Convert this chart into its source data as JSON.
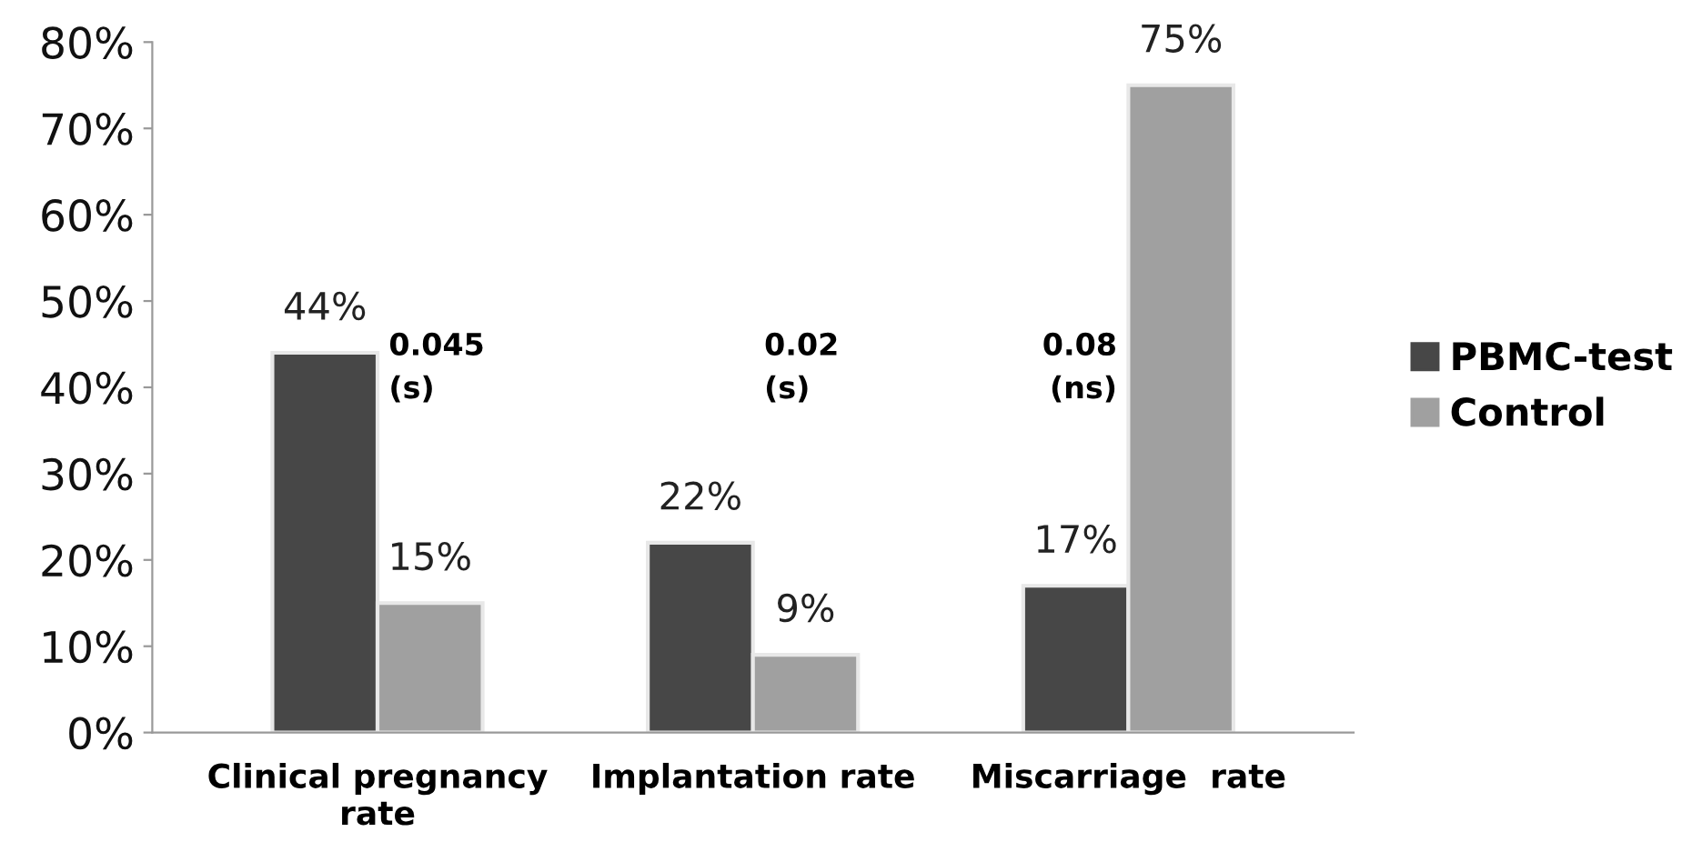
{
  "chart_data": {
    "type": "bar",
    "categories": [
      "Clinical pregnancy\nrate",
      "Implantation rate",
      "Miscarriage  rate"
    ],
    "series": [
      {
        "name": "PBMC-test",
        "color": "#474747",
        "values": [
          44,
          22,
          17
        ],
        "value_labels": [
          "44%",
          "22%",
          "17%"
        ]
      },
      {
        "name": "Control",
        "color": "#a0a0a0",
        "values": [
          15,
          9,
          75
        ],
        "value_labels": [
          "15%",
          "9%",
          "75%"
        ]
      }
    ],
    "ylim": [
      0,
      80
    ],
    "yticks": [
      {
        "value": 0,
        "label": "0%"
      },
      {
        "value": 10,
        "label": "10%"
      },
      {
        "value": 20,
        "label": "20%"
      },
      {
        "value": 30,
        "label": "30%"
      },
      {
        "value": 40,
        "label": "40%"
      },
      {
        "value": 50,
        "label": "50%"
      },
      {
        "value": 60,
        "label": "60%"
      },
      {
        "value": 70,
        "label": "70%"
      },
      {
        "value": 80,
        "label": "80%"
      }
    ],
    "annotations": [
      "0.045\n(s)",
      "0.02\n(s)",
      "0.08\n(ns)"
    ],
    "grid": false,
    "legend": "right"
  }
}
